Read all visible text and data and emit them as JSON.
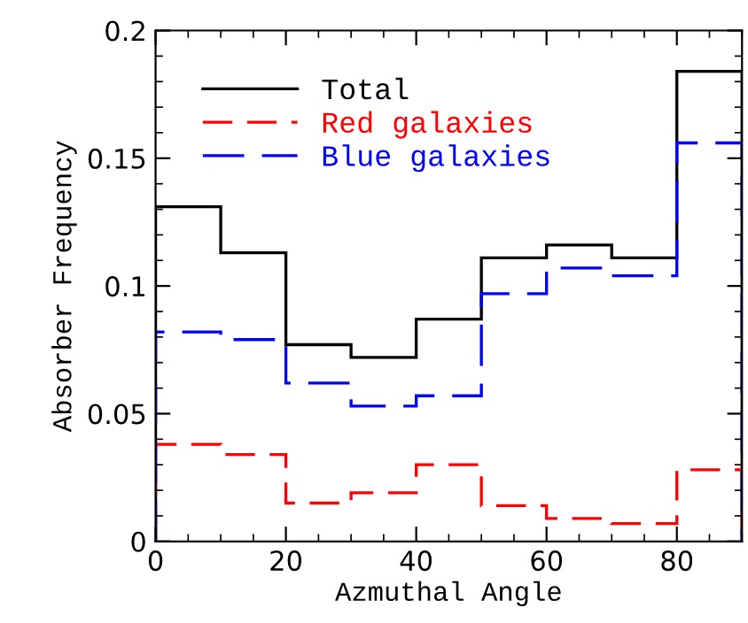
{
  "chart_data": {
    "type": "histogram",
    "xlabel": "Azmuthal Angle",
    "ylabel": "Absorber Frequency",
    "bins": [
      0,
      10,
      20,
      30,
      40,
      50,
      60,
      70,
      80,
      90
    ],
    "series": [
      {
        "name": "Total",
        "color": "#000000",
        "line_style": "solid",
        "values": [
          0.131,
          0.113,
          0.077,
          0.072,
          0.087,
          0.111,
          0.116,
          0.111,
          0.184
        ]
      },
      {
        "name": "Red galaxies",
        "color": "#ff0000",
        "line_style": "dashed",
        "values": [
          0.038,
          0.034,
          0.015,
          0.019,
          0.03,
          0.014,
          0.009,
          0.007,
          0.028
        ]
      },
      {
        "name": "Blue galaxies",
        "color": "#0000ff",
        "line_style": "dashed",
        "values": [
          0.082,
          0.079,
          0.062,
          0.053,
          0.057,
          0.097,
          0.107,
          0.104,
          0.156
        ]
      }
    ],
    "xlim": [
      0,
      90
    ],
    "ylim": [
      0,
      0.2
    ],
    "xticks": [
      0,
      20,
      40,
      60,
      80
    ],
    "yticks": [
      0,
      0.05,
      0.1,
      0.15,
      0.2
    ],
    "grid": false,
    "legend": "top left"
  }
}
